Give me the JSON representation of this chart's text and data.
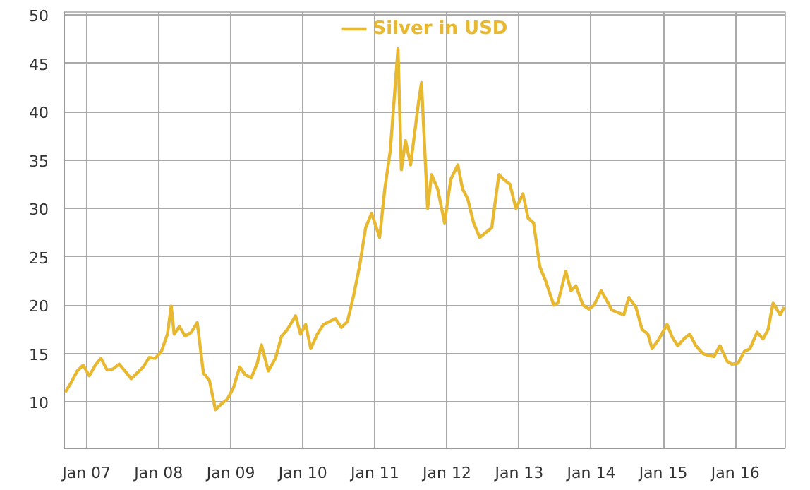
{
  "chart_data": {
    "type": "line",
    "x": [
      "2006-09-15",
      "2006-10-15",
      "2006-11-15",
      "2006-12-15",
      "2007-01-15",
      "2007-02-15",
      "2007-03-15",
      "2007-04-15",
      "2007-05-15",
      "2007-06-15",
      "2007-07-15",
      "2007-08-15",
      "2007-09-15",
      "2007-10-15",
      "2007-11-15",
      "2007-12-15",
      "2008-01-15",
      "2008-02-15",
      "2008-03-05",
      "2008-03-20",
      "2008-04-15",
      "2008-05-15",
      "2008-06-15",
      "2008-07-15",
      "2008-08-15",
      "2008-09-15",
      "2008-10-15",
      "2008-11-15",
      "2008-12-15",
      "2009-01-15",
      "2009-02-15",
      "2009-03-15",
      "2009-04-15",
      "2009-05-15",
      "2009-06-05",
      "2009-07-10",
      "2009-08-15",
      "2009-09-15",
      "2009-10-15",
      "2009-11-25",
      "2009-12-20",
      "2010-01-15",
      "2010-02-10",
      "2010-03-15",
      "2010-04-15",
      "2010-05-15",
      "2010-06-15",
      "2010-07-15",
      "2010-08-15",
      "2010-09-15",
      "2010-10-15",
      "2010-11-15",
      "2010-12-15",
      "2011-01-25",
      "2011-02-20",
      "2011-03-20",
      "2011-04-28",
      "2011-05-15",
      "2011-06-05",
      "2011-07-01",
      "2011-08-10",
      "2011-08-25",
      "2011-09-25",
      "2011-10-15",
      "2011-11-15",
      "2011-12-20",
      "2012-01-20",
      "2012-02-25",
      "2012-03-20",
      "2012-04-15",
      "2012-05-15",
      "2012-06-15",
      "2012-07-15",
      "2012-08-15",
      "2012-09-20",
      "2012-10-15",
      "2012-11-15",
      "2012-12-15",
      "2013-01-20",
      "2013-02-15",
      "2013-03-15",
      "2013-04-15",
      "2013-05-15",
      "2013-06-25",
      "2013-07-15",
      "2013-08-25",
      "2013-09-20",
      "2013-10-15",
      "2013-11-20",
      "2013-12-20",
      "2014-01-15",
      "2014-02-20",
      "2014-03-20",
      "2014-04-15",
      "2014-05-20",
      "2014-06-15",
      "2014-07-10",
      "2014-08-15",
      "2014-09-15",
      "2014-10-15",
      "2014-11-05",
      "2014-12-10",
      "2015-01-20",
      "2015-02-15",
      "2015-03-15",
      "2015-04-15",
      "2015-05-15",
      "2015-06-15",
      "2015-07-20",
      "2015-08-15",
      "2015-09-15",
      "2015-10-15",
      "2015-11-20",
      "2015-12-15",
      "2016-01-15",
      "2016-02-15",
      "2016-03-15",
      "2016-04-20",
      "2016-05-20",
      "2016-06-15",
      "2016-07-10",
      "2016-08-15",
      "2016-09-05"
    ],
    "series": [
      {
        "name": "Silver in USD",
        "color": "#e8b830",
        "values": [
          11.0,
          12.0,
          13.2,
          13.8,
          12.7,
          13.8,
          14.5,
          13.3,
          13.4,
          13.9,
          13.2,
          12.4,
          13.0,
          13.6,
          14.6,
          14.5,
          15.2,
          17.0,
          19.9,
          17.0,
          17.8,
          16.8,
          17.2,
          18.2,
          13.0,
          12.2,
          9.2,
          9.8,
          10.3,
          11.5,
          13.6,
          12.8,
          12.5,
          14.0,
          15.9,
          13.2,
          14.5,
          16.8,
          17.5,
          18.9,
          17.0,
          18.0,
          15.5,
          17.0,
          18.0,
          18.3,
          18.6,
          17.7,
          18.3,
          21.0,
          24.0,
          28.0,
          29.5,
          27.0,
          32.0,
          36.0,
          46.5,
          34.0,
          37.0,
          34.5,
          41.0,
          43.0,
          30.0,
          33.5,
          32.0,
          28.5,
          33.0,
          34.5,
          32.0,
          31.0,
          28.5,
          27.0,
          27.5,
          28.0,
          33.5,
          33.0,
          32.5,
          30.0,
          31.5,
          29.0,
          28.5,
          24.0,
          22.5,
          20.0,
          20.2,
          23.5,
          21.5,
          22.0,
          20.0,
          19.6,
          20.0,
          21.5,
          20.5,
          19.5,
          19.2,
          19.0,
          20.8,
          19.8,
          17.5,
          17.0,
          15.5,
          16.5,
          18.0,
          16.7,
          15.8,
          16.5,
          17.0,
          15.8,
          15.0,
          14.8,
          14.7,
          15.8,
          14.2,
          13.9,
          14.0,
          15.2,
          15.5,
          17.2,
          16.5,
          17.5,
          20.2,
          19.0,
          19.8
        ]
      }
    ],
    "xlim": [
      "2006-09-10",
      "2016-09-10"
    ],
    "xticks": [
      {
        "value": "2007-01-01",
        "label": "Jan 07"
      },
      {
        "value": "2008-01-01",
        "label": "Jan 08"
      },
      {
        "value": "2009-01-01",
        "label": "Jan 09"
      },
      {
        "value": "2010-01-01",
        "label": "Jan 10"
      },
      {
        "value": "2011-01-01",
        "label": "Jan 11"
      },
      {
        "value": "2012-01-01",
        "label": "Jan 12"
      },
      {
        "value": "2013-01-01",
        "label": "Jan 13"
      },
      {
        "value": "2014-01-01",
        "label": "Jan 14"
      },
      {
        "value": "2015-01-01",
        "label": "Jan 15"
      },
      {
        "value": "2016-01-01",
        "label": "Jan 16"
      }
    ],
    "ylim": [
      5.2,
      50.3
    ],
    "yticks": [
      10,
      15,
      20,
      25,
      30,
      35,
      40,
      45,
      50
    ],
    "grid": true,
    "legend": "top",
    "marker": "none",
    "line_style": "solid"
  }
}
